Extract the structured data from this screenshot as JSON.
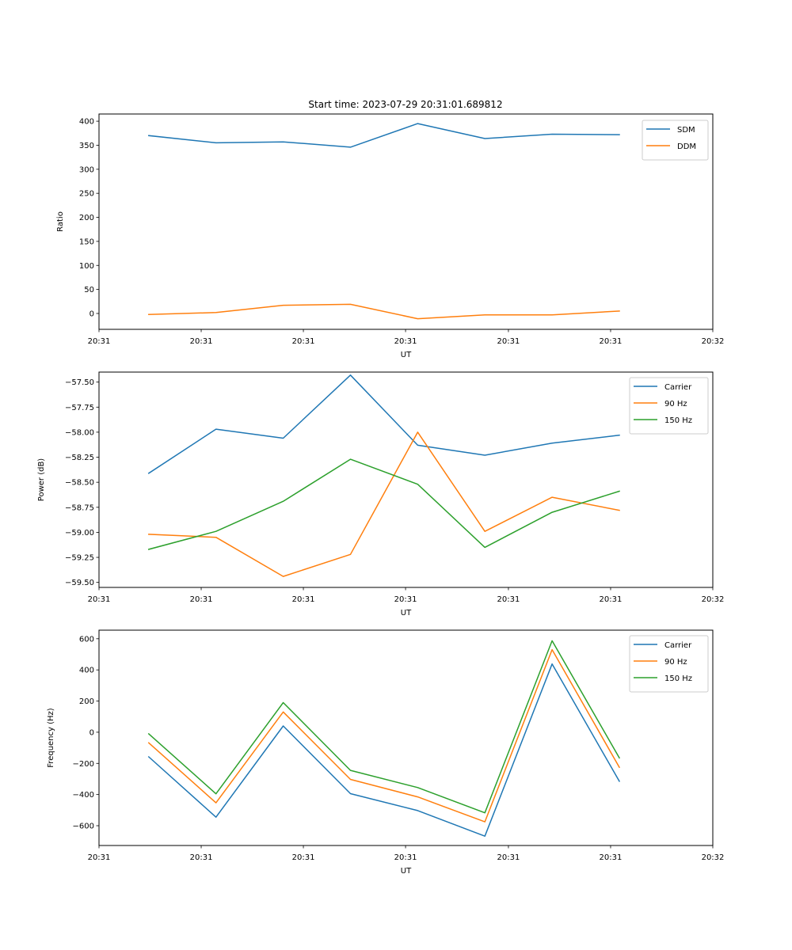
{
  "figure": {
    "title": "Start time: 2023-07-29 20:31:01.689812"
  },
  "chart_data": [
    {
      "type": "line",
      "title": "Start time: 2023-07-29 20:31:01.689812",
      "xlabel": "UT",
      "ylabel": "Ratio",
      "x_tick_labels": [
        "20:31",
        "20:31",
        "20:31",
        "20:31",
        "20:31",
        "20:31",
        "20:32"
      ],
      "y_ticks": [
        0,
        50,
        100,
        150,
        200,
        250,
        300,
        350,
        400
      ],
      "y_tick_labels": [
        "0",
        "50",
        "100",
        "150",
        "200",
        "250",
        "300",
        "350",
        "400"
      ],
      "ylim": [
        -33,
        415
      ],
      "x_index": [
        1,
        2,
        3,
        4,
        5,
        6,
        7,
        8
      ],
      "xlim": [
        0.26,
        9.39
      ],
      "x_tick_positions": [
        0.26,
        1.78,
        3.3,
        4.82,
        6.35,
        7.87,
        9.39
      ],
      "legend": "top-right",
      "grid": false,
      "series": [
        {
          "name": "SDM",
          "color": "#1f77b4",
          "values": [
            370,
            355,
            357,
            346,
            395,
            364,
            373,
            372
          ]
        },
        {
          "name": "DDM",
          "color": "#ff7f0e",
          "values": [
            -2,
            2,
            17,
            19,
            -11,
            -3,
            -3,
            5
          ]
        }
      ]
    },
    {
      "type": "line",
      "title": "",
      "xlabel": "UT",
      "ylabel": "Power (dB)",
      "x_tick_labels": [
        "20:31",
        "20:31",
        "20:31",
        "20:31",
        "20:31",
        "20:31",
        "20:32"
      ],
      "y_ticks": [
        -59.5,
        -59.25,
        -59.0,
        -58.75,
        -58.5,
        -58.25,
        -58.0,
        -57.75,
        -57.5
      ],
      "y_tick_labels": [
        "−59.50",
        "−59.25",
        "−59.00",
        "−58.75",
        "−58.50",
        "−58.25",
        "−58.00",
        "−57.75",
        "−57.50"
      ],
      "ylim": [
        -59.55,
        -57.4
      ],
      "x_index": [
        1,
        2,
        3,
        4,
        5,
        6,
        7,
        8
      ],
      "xlim": [
        0.26,
        9.39
      ],
      "x_tick_positions": [
        0.26,
        1.78,
        3.3,
        4.82,
        6.35,
        7.87,
        9.39
      ],
      "legend": "top-right",
      "grid": false,
      "series": [
        {
          "name": "Carrier",
          "color": "#1f77b4",
          "values": [
            -58.41,
            -57.97,
            -58.06,
            -57.43,
            -58.13,
            -58.23,
            -58.11,
            -58.03
          ]
        },
        {
          "name": "90 Hz",
          "color": "#ff7f0e",
          "values": [
            -59.02,
            -59.05,
            -59.44,
            -59.22,
            -58.0,
            -58.99,
            -58.65,
            -58.78
          ]
        },
        {
          "name": "150 Hz",
          "color": "#2ca02c",
          "values": [
            -59.17,
            -58.99,
            -58.69,
            -58.27,
            -58.52,
            -59.15,
            -58.8,
            -58.59
          ]
        }
      ]
    },
    {
      "type": "line",
      "title": "",
      "xlabel": "UT",
      "ylabel": "Frequency (Hz)",
      "x_tick_labels": [
        "20:31",
        "20:31",
        "20:31",
        "20:31",
        "20:31",
        "20:31",
        "20:32"
      ],
      "y_ticks": [
        -600,
        -400,
        -200,
        0,
        200,
        400,
        600
      ],
      "y_tick_labels": [
        "−600",
        "−400",
        "−200",
        "0",
        "200",
        "400",
        "600"
      ],
      "ylim": [
        -727,
        655
      ],
      "x_index": [
        1,
        2,
        3,
        4,
        5,
        6,
        7,
        8
      ],
      "xlim": [
        0.26,
        9.39
      ],
      "x_tick_positions": [
        0.26,
        1.78,
        3.3,
        4.82,
        6.35,
        7.87,
        9.39
      ],
      "legend": "top-right",
      "grid": false,
      "series": [
        {
          "name": "Carrier",
          "color": "#1f77b4",
          "values": [
            -158,
            -545,
            40,
            -394,
            -503,
            -667,
            438,
            -315
          ]
        },
        {
          "name": "90 Hz",
          "color": "#ff7f0e",
          "values": [
            -68,
            -453,
            130,
            -303,
            -415,
            -575,
            530,
            -225
          ]
        },
        {
          "name": "150 Hz",
          "color": "#2ca02c",
          "values": [
            -10,
            -395,
            190,
            -245,
            -355,
            -517,
            587,
            -165
          ]
        }
      ]
    }
  ]
}
